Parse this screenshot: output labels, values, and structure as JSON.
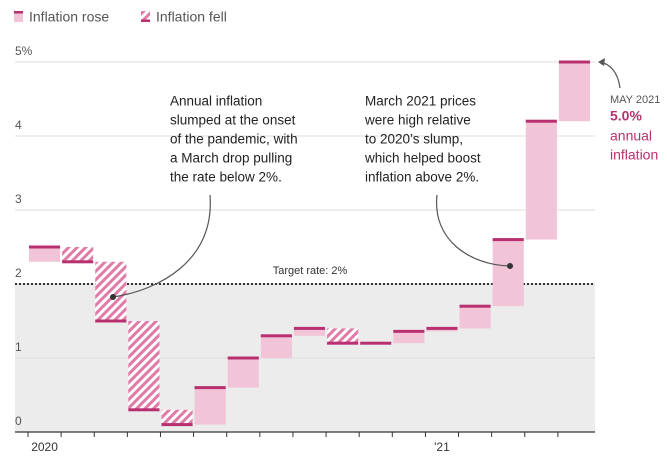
{
  "chart_data": {
    "type": "waterfall",
    "legend": {
      "rose": "Inflation rose",
      "fell": "Inflation fell"
    },
    "categories": [
      "2020",
      null,
      null,
      null,
      null,
      null,
      null,
      null,
      null,
      null,
      null,
      null,
      "'21",
      null,
      null,
      null,
      null
    ],
    "start_value": 2.3,
    "values": [
      2.5,
      2.3,
      1.5,
      0.3,
      0.1,
      0.6,
      1.0,
      1.3,
      1.4,
      1.2,
      1.2,
      1.36,
      1.4,
      1.7,
      2.6,
      4.2,
      5.0
    ],
    "ylim": [
      0,
      5
    ],
    "yticks": [
      0,
      1,
      2,
      3,
      4,
      {
        "value": 5,
        "label": "5%"
      }
    ],
    "grid": true,
    "fill_color": "#f2c4d7",
    "line_color": "#b8306f",
    "target": {
      "value": 2,
      "label": "Target rate: 2%"
    },
    "annotations": [
      {
        "lines": [
          "Annual inflation",
          "slumped at the onset",
          "of the pandemic, with",
          "a March drop pulling",
          "the rate below 2%."
        ]
      },
      {
        "lines": [
          "March 2021 prices",
          "were high relative",
          "to 2020’s slump,",
          "which helped boost",
          "inflation above 2%."
        ]
      }
    ],
    "end_label": {
      "date": "MAY 2021",
      "value": "5.0%",
      "lines": [
        "annual",
        "inflation"
      ]
    }
  }
}
